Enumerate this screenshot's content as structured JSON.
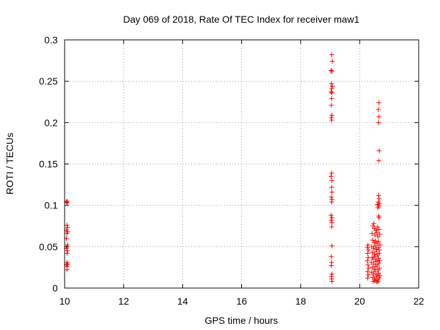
{
  "chart_data": {
    "type": "scatter",
    "title": "Day 069 of 2018, Rate Of TEC Index for receiver maw1",
    "xlabel": "GPS time / hours",
    "ylabel": "ROTI / TECUs",
    "xlim": [
      10,
      22
    ],
    "ylim": [
      0,
      0.3
    ],
    "x_ticks": [
      10,
      12,
      14,
      16,
      18,
      20,
      22
    ],
    "y_ticks": [
      0,
      0.05,
      0.1,
      0.15,
      0.2,
      0.25,
      0.3
    ],
    "x_tick_labels": [
      "10",
      "12",
      "14",
      "16",
      "18",
      "20",
      "22"
    ],
    "y_tick_labels": [
      "0",
      "0.05",
      "0.1",
      "0.15",
      "0.2",
      "0.25",
      "0.3"
    ],
    "grid": true,
    "marker": "+",
    "marker_color": "#ff0000",
    "series": [
      {
        "name": "ROTI",
        "points": [
          [
            10.08,
            0.105
          ],
          [
            10.1,
            0.103
          ],
          [
            10.06,
            0.104
          ],
          [
            10.08,
            0.076
          ],
          [
            10.1,
            0.073
          ],
          [
            10.06,
            0.07
          ],
          [
            10.1,
            0.068
          ],
          [
            10.08,
            0.066
          ],
          [
            10.06,
            0.06
          ],
          [
            10.1,
            0.052
          ],
          [
            10.08,
            0.05
          ],
          [
            10.06,
            0.048
          ],
          [
            10.1,
            0.045
          ],
          [
            10.08,
            0.042
          ],
          [
            10.08,
            0.031
          ],
          [
            10.1,
            0.029
          ],
          [
            10.06,
            0.028
          ],
          [
            10.08,
            0.026
          ],
          [
            10.08,
            0.022
          ],
          [
            19.05,
            0.282
          ],
          [
            19.07,
            0.274
          ],
          [
            19.03,
            0.263
          ],
          [
            19.06,
            0.262
          ],
          [
            19.04,
            0.247
          ],
          [
            19.07,
            0.244
          ],
          [
            19.05,
            0.241
          ],
          [
            19.03,
            0.237
          ],
          [
            19.06,
            0.236
          ],
          [
            19.05,
            0.229
          ],
          [
            19.04,
            0.221
          ],
          [
            19.06,
            0.209
          ],
          [
            19.04,
            0.206
          ],
          [
            19.05,
            0.203
          ],
          [
            19.05,
            0.139
          ],
          [
            19.03,
            0.135
          ],
          [
            19.06,
            0.13
          ],
          [
            19.05,
            0.122
          ],
          [
            19.06,
            0.116
          ],
          [
            19.04,
            0.11
          ],
          [
            19.06,
            0.107
          ],
          [
            19.05,
            0.104
          ],
          [
            19.03,
            0.088
          ],
          [
            19.06,
            0.085
          ],
          [
            19.04,
            0.082
          ],
          [
            19.06,
            0.079
          ],
          [
            19.05,
            0.074
          ],
          [
            19.06,
            0.051
          ],
          [
            19.04,
            0.038
          ],
          [
            19.05,
            0.031
          ],
          [
            19.04,
            0.027
          ],
          [
            19.06,
            0.017
          ],
          [
            19.04,
            0.014
          ],
          [
            19.05,
            0.011
          ],
          [
            19.06,
            0.008
          ],
          [
            20.65,
            0.224
          ],
          [
            20.63,
            0.216
          ],
          [
            20.65,
            0.207
          ],
          [
            20.64,
            0.2
          ],
          [
            20.66,
            0.166
          ],
          [
            20.65,
            0.154
          ],
          [
            20.64,
            0.112
          ],
          [
            20.66,
            0.108
          ],
          [
            20.63,
            0.104
          ],
          [
            20.67,
            0.102
          ],
          [
            20.6,
            0.101
          ],
          [
            20.65,
            0.099
          ],
          [
            20.62,
            0.097
          ],
          [
            20.64,
            0.087
          ],
          [
            20.66,
            0.085
          ],
          [
            20.28,
            0.052
          ],
          [
            20.26,
            0.049
          ],
          [
            20.3,
            0.046
          ],
          [
            20.27,
            0.042
          ],
          [
            20.29,
            0.037
          ],
          [
            20.26,
            0.033
          ],
          [
            20.28,
            0.028
          ],
          [
            20.3,
            0.024
          ],
          [
            20.27,
            0.02
          ],
          [
            20.29,
            0.016
          ],
          [
            20.27,
            0.012
          ],
          [
            20.45,
            0.075
          ],
          [
            20.5,
            0.072
          ],
          [
            20.48,
            0.078
          ],
          [
            20.55,
            0.07
          ],
          [
            20.6,
            0.074
          ],
          [
            20.65,
            0.071
          ],
          [
            20.42,
            0.066
          ],
          [
            20.52,
            0.064
          ],
          [
            20.58,
            0.067
          ],
          [
            20.62,
            0.062
          ],
          [
            20.68,
            0.065
          ],
          [
            20.44,
            0.058
          ],
          [
            20.49,
            0.055
          ],
          [
            20.54,
            0.057
          ],
          [
            20.59,
            0.054
          ],
          [
            20.64,
            0.056
          ],
          [
            20.69,
            0.052
          ],
          [
            20.41,
            0.05
          ],
          [
            20.47,
            0.048
          ],
          [
            20.53,
            0.051
          ],
          [
            20.57,
            0.047
          ],
          [
            20.63,
            0.049
          ],
          [
            20.67,
            0.046
          ],
          [
            20.43,
            0.043
          ],
          [
            20.5,
            0.041
          ],
          [
            20.56,
            0.044
          ],
          [
            20.61,
            0.04
          ],
          [
            20.66,
            0.042
          ],
          [
            20.42,
            0.037
          ],
          [
            20.46,
            0.035
          ],
          [
            20.52,
            0.038
          ],
          [
            20.58,
            0.034
          ],
          [
            20.64,
            0.036
          ],
          [
            20.68,
            0.033
          ],
          [
            20.4,
            0.031
          ],
          [
            20.48,
            0.029
          ],
          [
            20.54,
            0.032
          ],
          [
            20.6,
            0.028
          ],
          [
            20.65,
            0.03
          ],
          [
            20.43,
            0.025
          ],
          [
            20.49,
            0.023
          ],
          [
            20.55,
            0.026
          ],
          [
            20.62,
            0.022
          ],
          [
            20.67,
            0.024
          ],
          [
            20.41,
            0.019
          ],
          [
            20.47,
            0.017
          ],
          [
            20.53,
            0.02
          ],
          [
            20.59,
            0.016
          ],
          [
            20.64,
            0.018
          ],
          [
            20.69,
            0.015
          ],
          [
            20.44,
            0.013
          ],
          [
            20.5,
            0.011
          ],
          [
            20.56,
            0.014
          ],
          [
            20.61,
            0.01
          ],
          [
            20.66,
            0.012
          ],
          [
            20.46,
            0.008
          ],
          [
            20.52,
            0.009
          ],
          [
            20.58,
            0.007
          ],
          [
            20.63,
            0.008
          ]
        ]
      }
    ]
  }
}
